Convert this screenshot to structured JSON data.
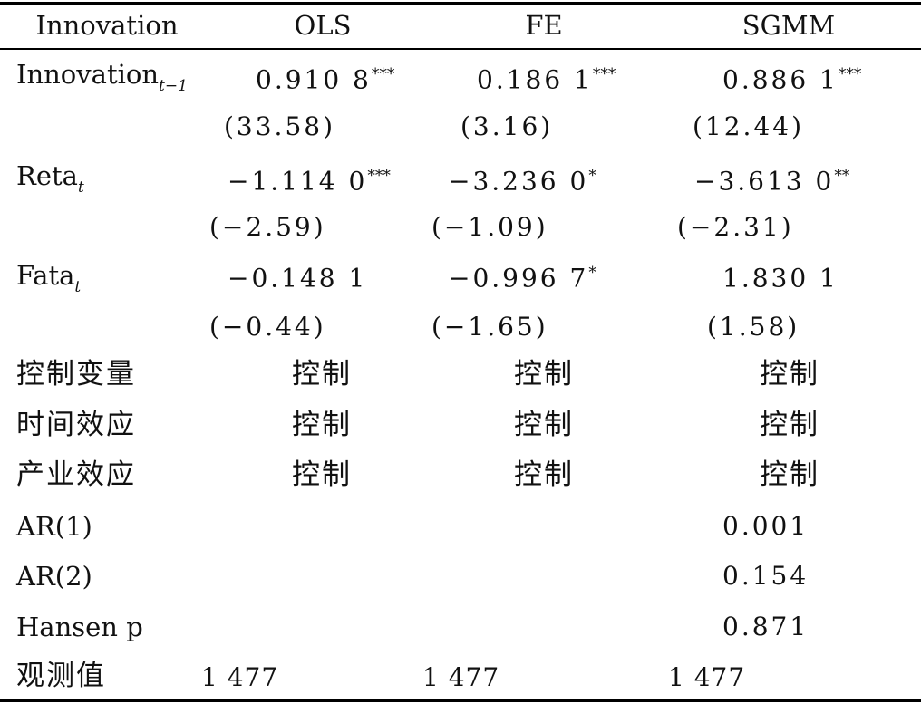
{
  "table": {
    "headers": [
      "Innovation",
      "OLS",
      "FE",
      "SGMM"
    ],
    "rows": {
      "innovation_lag": {
        "label": "Innovation",
        "label_sub": "t−1",
        "ols": "0.910 8",
        "ols_sig": "***",
        "fe": "0.186 1",
        "fe_sig": "***",
        "sgmm": "0.886 1",
        "sgmm_sig": "***",
        "ols_t": "(33.58)",
        "fe_t": "(3.16)",
        "sgmm_t": "(12.44)"
      },
      "reta": {
        "label": "Reta",
        "label_sub": "t",
        "ols": "−1.114 0",
        "ols_sig": "***",
        "fe": "−3.236 0",
        "fe_sig": "*",
        "sgmm": "−3.613 0",
        "sgmm_sig": "**",
        "ols_t": "(−2.59)",
        "fe_t": "(−1.09)",
        "sgmm_t": "(−2.31)"
      },
      "fata": {
        "label": "Fata",
        "label_sub": "t",
        "ols": "−0.148 1",
        "ols_sig": "",
        "fe": "−0.996 7",
        "fe_sig": "*",
        "sgmm": "1.830 1",
        "sgmm_sig": "",
        "ols_t": "(−0.44)",
        "fe_t": "(−1.65)",
        "sgmm_t": "(1.58)"
      },
      "controls": {
        "label": "控制变量",
        "ols": "控制",
        "fe": "控制",
        "sgmm": "控制"
      },
      "time_effect": {
        "label": "时间效应",
        "ols": "控制",
        "fe": "控制",
        "sgmm": "控制"
      },
      "industry_effect": {
        "label": "产业效应",
        "ols": "控制",
        "fe": "控制",
        "sgmm": "控制"
      },
      "ar1": {
        "label": "AR(1)",
        "sgmm": "0.001"
      },
      "ar2": {
        "label": "AR(2)",
        "sgmm": "0.154"
      },
      "hansen": {
        "label": "Hansen p",
        "sgmm": "0.871"
      },
      "obs": {
        "label": "观测值",
        "ols": "1 477",
        "fe": "1 477",
        "sgmm": "1 477"
      }
    }
  }
}
